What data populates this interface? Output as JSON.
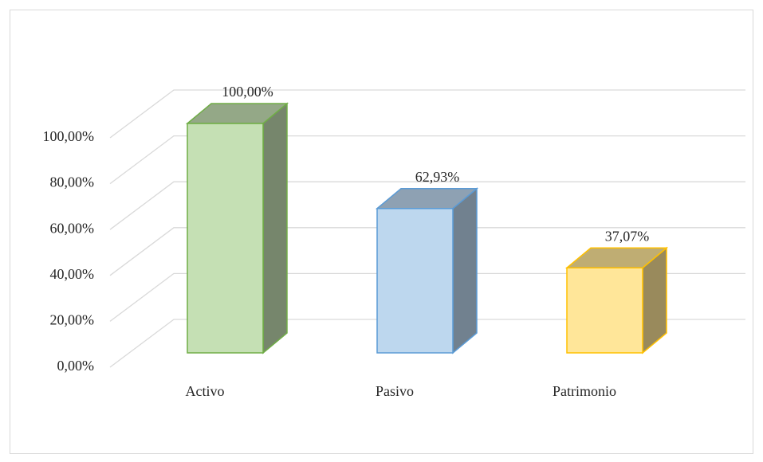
{
  "chart_data": {
    "type": "bar3d",
    "categories": [
      "Activo",
      "Pasivo",
      "Patrimonio"
    ],
    "values": [
      100,
      62.93,
      37.07
    ],
    "value_labels": [
      "100,00%",
      "62,93%",
      "37,07%"
    ],
    "colors": [
      "#c5e0b4",
      "#bdd7ee",
      "#ffe699"
    ],
    "edge_colors": [
      "#70ad47",
      "#5b9bd5",
      "#ffc000"
    ],
    "ylim": [
      0,
      100
    ],
    "yticks": [
      {
        "value": 0,
        "label": "0,00%"
      },
      {
        "value": 20,
        "label": "20,00%"
      },
      {
        "value": 40,
        "label": "40,00%"
      },
      {
        "value": 60,
        "label": "60,00%"
      },
      {
        "value": 80,
        "label": "80,00%"
      },
      {
        "value": 100,
        "label": "100,00%"
      }
    ],
    "grid": true
  }
}
